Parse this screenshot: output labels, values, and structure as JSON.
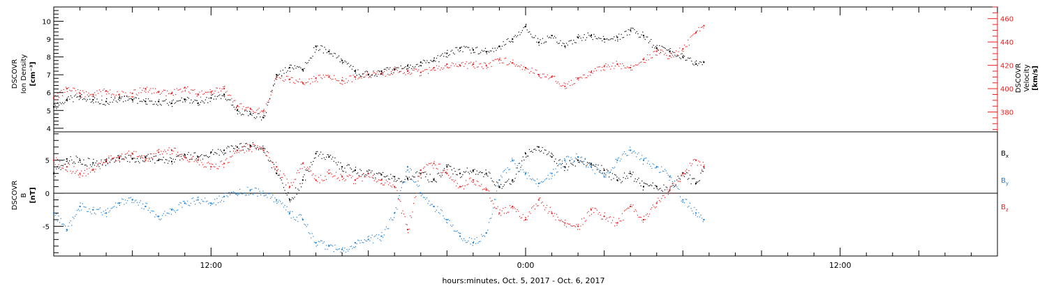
{
  "xaxis": {
    "label": "hours:minutes, Oct.  5, 2017 - Oct.  6, 2017",
    "range_hours": [
      6.0,
      42.0
    ],
    "major_ticks": [
      {
        "h": 12,
        "label": "12:00"
      },
      {
        "h": 24,
        "label": "0:00"
      },
      {
        "h": 36,
        "label": "12:00"
      }
    ]
  },
  "colors": {
    "black": "#000000",
    "red": "#ee1c1c",
    "blue": "#1a7fd4"
  },
  "top_panel": {
    "ylabel_left": [
      "DSCOVR",
      "Ion Density",
      "[cm⁻³]"
    ],
    "ylabel_right": [
      "DSCOVR",
      "Velocity",
      "[km/s]"
    ],
    "left_ticks": [
      "4",
      "5",
      "6",
      "7",
      "8",
      "9",
      "10"
    ],
    "right_ticks": [
      "380",
      "400",
      "420",
      "440",
      "460"
    ]
  },
  "bottom_panel": {
    "ylabel": [
      "DSCOVR",
      "B",
      "[nT]"
    ],
    "ticks": [
      "-5",
      "0",
      "5"
    ],
    "legend": [
      {
        "base": "B",
        "sub": "x",
        "color": "#000000"
      },
      {
        "base": "B",
        "sub": "y",
        "color": "#1a7fd4"
      },
      {
        "base": "B",
        "sub": "z",
        "color": "#ee1c1c"
      }
    ]
  },
  "chart_data": [
    {
      "type": "scatter",
      "xlabel": "hours:minutes, Oct.  5, 2017 - Oct.  6, 2017",
      "ylabel": "DSCOVR Ion Density [cm^-3]",
      "ylabel_right": "DSCOVR Velocity [km/s]",
      "ylim": [
        3.8,
        10.8
      ],
      "ylim_right": [
        363,
        470
      ],
      "grid": false,
      "series": [
        {
          "name": "DSCOVR Ion Density",
          "color": "#000000",
          "axis": "left",
          "x": [
            6.0,
            6.5,
            7.0,
            7.5,
            8.0,
            8.5,
            9.0,
            9.5,
            10.0,
            10.5,
            11.0,
            11.5,
            12.0,
            12.5,
            13.0,
            13.5,
            14.0,
            14.5,
            15.0,
            15.5,
            16.0,
            16.5,
            17.0,
            17.5,
            18.0,
            18.5,
            19.0,
            19.5,
            20.0,
            20.5,
            21.0,
            21.5,
            22.0,
            22.5,
            23.0,
            23.5,
            24.0,
            24.5,
            25.0,
            25.5,
            26.0,
            26.5,
            27.0,
            27.5,
            28.0,
            28.5,
            29.0,
            29.5,
            30.0,
            30.5,
            30.8
          ],
          "y": [
            5.2,
            5.6,
            5.8,
            5.6,
            5.5,
            5.7,
            5.6,
            5.5,
            5.5,
            5.4,
            5.6,
            5.4,
            5.7,
            5.9,
            5.0,
            4.8,
            4.6,
            7.0,
            7.4,
            7.3,
            8.6,
            8.3,
            7.8,
            7.2,
            7.0,
            7.2,
            7.3,
            7.5,
            7.7,
            7.8,
            8.2,
            8.5,
            8.4,
            8.3,
            8.6,
            9.0,
            9.7,
            8.8,
            9.2,
            8.6,
            9.1,
            9.2,
            9.0,
            9.1,
            9.5,
            9.2,
            8.5,
            8.3,
            8.0,
            7.6,
            7.7
          ]
        },
        {
          "name": "DSCOVR Velocity",
          "color": "#ee1c1c",
          "axis": "right",
          "x": [
            6.0,
            6.5,
            7.0,
            7.5,
            8.0,
            8.5,
            9.0,
            9.5,
            10.0,
            10.5,
            11.0,
            11.5,
            12.0,
            12.5,
            13.0,
            13.5,
            14.0,
            14.5,
            15.0,
            15.5,
            16.0,
            16.5,
            17.0,
            17.5,
            18.0,
            18.5,
            19.0,
            19.5,
            20.0,
            20.5,
            21.0,
            21.5,
            22.0,
            22.5,
            23.0,
            23.5,
            24.0,
            24.5,
            25.0,
            25.5,
            26.0,
            26.5,
            27.0,
            27.5,
            28.0,
            28.5,
            29.0,
            29.5,
            30.0,
            30.5,
            30.8
          ],
          "y": [
            392,
            400,
            396,
            395,
            398,
            395,
            396,
            400,
            397,
            396,
            401,
            395,
            397,
            400,
            385,
            383,
            381,
            410,
            408,
            405,
            409,
            410,
            407,
            410,
            412,
            413,
            416,
            415,
            414,
            418,
            421,
            420,
            421,
            420,
            425,
            422,
            418,
            412,
            410,
            402,
            409,
            414,
            419,
            421,
            418,
            425,
            432,
            428,
            434,
            448,
            454
          ]
        }
      ]
    },
    {
      "type": "scatter",
      "xlabel": "hours:minutes, Oct.  5, 2017 - Oct.  6, 2017",
      "ylabel": "DSCOVR B [nT]",
      "ylim": [
        -9.5,
        9.3
      ],
      "grid": false,
      "series": [
        {
          "name": "Bx",
          "color": "#000000",
          "x": [
            6.0,
            6.5,
            7.0,
            7.5,
            8.0,
            8.5,
            9.0,
            9.5,
            10.0,
            10.5,
            11.0,
            11.5,
            12.0,
            12.5,
            13.0,
            13.5,
            14.0,
            14.5,
            15.0,
            15.5,
            16.0,
            16.5,
            17.0,
            17.5,
            18.0,
            18.5,
            19.0,
            19.5,
            20.0,
            20.5,
            21.0,
            21.5,
            22.0,
            22.5,
            23.0,
            23.5,
            24.0,
            24.5,
            25.0,
            25.5,
            26.0,
            26.5,
            27.0,
            27.5,
            28.0,
            28.5,
            29.0,
            29.5,
            30.0,
            30.5,
            30.8
          ],
          "y": [
            3.0,
            5.2,
            5.0,
            4.6,
            4.8,
            5.3,
            5.2,
            5.4,
            5.0,
            4.8,
            5.8,
            5.5,
            6.2,
            6.5,
            7.0,
            7.2,
            6.8,
            3.0,
            -1.0,
            2.0,
            6.0,
            5.5,
            4.0,
            3.5,
            3.0,
            2.8,
            2.5,
            2.2,
            3.0,
            2.0,
            4.0,
            3.0,
            3.5,
            3.0,
            1.0,
            2.0,
            6.0,
            7.0,
            5.5,
            4.0,
            5.0,
            4.5,
            3.5,
            2.0,
            3.0,
            1.0,
            1.0,
            0.5,
            3.0,
            1.5,
            4.0
          ]
        },
        {
          "name": "By",
          "color": "#1a7fd4",
          "x": [
            6.0,
            6.5,
            7.0,
            7.5,
            8.0,
            8.5,
            9.0,
            9.5,
            10.0,
            10.5,
            11.0,
            11.5,
            12.0,
            12.5,
            13.0,
            13.5,
            14.0,
            14.5,
            15.0,
            15.5,
            16.0,
            16.5,
            17.0,
            17.5,
            18.0,
            18.5,
            19.0,
            19.5,
            20.0,
            20.5,
            21.0,
            21.5,
            22.0,
            22.5,
            23.0,
            23.5,
            24.0,
            24.5,
            25.0,
            25.5,
            26.0,
            26.5,
            27.0,
            27.5,
            28.0,
            28.5,
            29.0,
            29.5,
            30.0,
            30.5,
            30.8
          ],
          "y": [
            -3.0,
            -5.5,
            -2.0,
            -2.5,
            -3.0,
            -1.5,
            -1.0,
            -2.0,
            -3.5,
            -2.5,
            -1.5,
            -1.0,
            -1.5,
            -0.5,
            0.0,
            0.5,
            0.0,
            -1.0,
            -3.0,
            -4.0,
            -7.5,
            -8.0,
            -8.5,
            -7.5,
            -7.0,
            -6.5,
            -3.0,
            4.0,
            0.0,
            -2.0,
            -4.0,
            -6.5,
            -7.5,
            -6.0,
            2.0,
            5.0,
            3.0,
            1.5,
            3.0,
            5.0,
            5.5,
            4.0,
            2.5,
            5.0,
            6.5,
            5.0,
            4.0,
            2.5,
            -1.0,
            -3.0,
            -4.0
          ]
        },
        {
          "name": "Bz",
          "color": "#ee1c1c",
          "x": [
            6.0,
            6.5,
            7.0,
            7.5,
            8.0,
            8.5,
            9.0,
            9.5,
            10.0,
            10.5,
            11.0,
            11.5,
            12.0,
            12.5,
            13.0,
            13.5,
            14.0,
            14.5,
            15.0,
            15.5,
            16.0,
            16.5,
            17.0,
            17.5,
            18.0,
            18.5,
            19.0,
            19.5,
            20.0,
            20.5,
            21.0,
            21.5,
            22.0,
            22.5,
            23.0,
            23.5,
            24.0,
            24.5,
            25.0,
            25.5,
            26.0,
            26.5,
            27.0,
            27.5,
            28.0,
            28.5,
            29.0,
            29.5,
            30.0,
            30.5,
            30.8
          ],
          "y": [
            5.0,
            4.0,
            3.0,
            3.5,
            5.0,
            5.5,
            6.0,
            5.0,
            6.2,
            6.5,
            5.5,
            5.0,
            4.0,
            4.5,
            6.5,
            7.0,
            6.5,
            4.0,
            1.0,
            4.5,
            2.0,
            3.0,
            2.5,
            2.0,
            3.0,
            2.0,
            1.0,
            -5.5,
            3.5,
            4.5,
            3.0,
            1.0,
            2.0,
            0.5,
            -3.0,
            -2.0,
            -4.0,
            -1.0,
            -3.0,
            -4.5,
            -5.0,
            -2.5,
            -3.5,
            -4.5,
            -2.0,
            -4.0,
            -1.5,
            0.5,
            3.0,
            5.0,
            4.0
          ]
        }
      ]
    }
  ]
}
